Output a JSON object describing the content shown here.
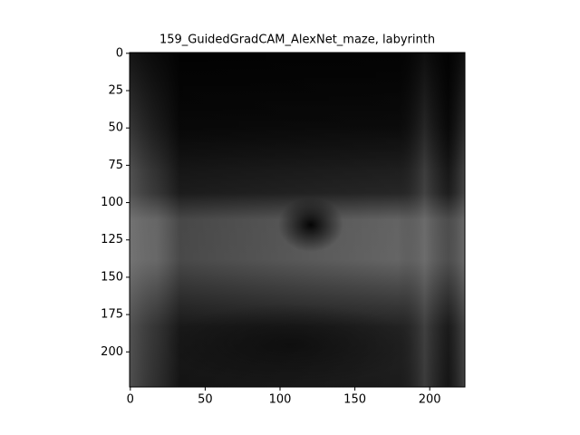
{
  "chart_data": {
    "type": "image",
    "title": "159_GuidedGradCAM_AlexNet_maze, labyrinth",
    "xlim": [
      -0.5,
      223.5
    ],
    "ylim": [
      223.5,
      -0.5
    ],
    "xticks": [
      0,
      50,
      100,
      150,
      200
    ],
    "yticks": [
      0,
      25,
      50,
      75,
      100,
      125,
      150,
      175,
      200
    ]
  }
}
